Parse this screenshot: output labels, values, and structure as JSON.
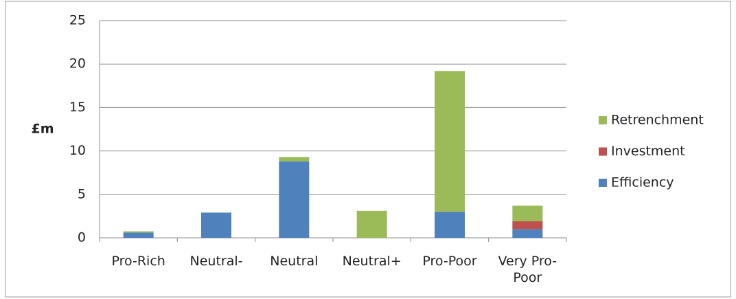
{
  "chart_data": {
    "type": "stacked_bar",
    "y_label": "£m",
    "categories": [
      "Pro-Rich",
      "Neutral-",
      "Neutral",
      "Neutral+",
      "Pro-Poor",
      "Very Pro-Poor"
    ],
    "series": [
      {
        "name": "Efficiency",
        "color": "#4f81bd",
        "values": [
          0.6,
          2.9,
          8.8,
          0,
          3.0,
          1.0
        ]
      },
      {
        "name": "Investment",
        "color": "#c0504d",
        "values": [
          0,
          0,
          0,
          0,
          0,
          0.9
        ]
      },
      {
        "name": "Retrenchment",
        "color": "#9bbb59",
        "values": [
          0.15,
          0,
          0.5,
          3.1,
          16.2,
          1.8
        ]
      }
    ],
    "ylim": [
      0,
      25
    ],
    "yticks": [
      0,
      5,
      10,
      15,
      20,
      25
    ],
    "grid": true,
    "legend": "right"
  }
}
